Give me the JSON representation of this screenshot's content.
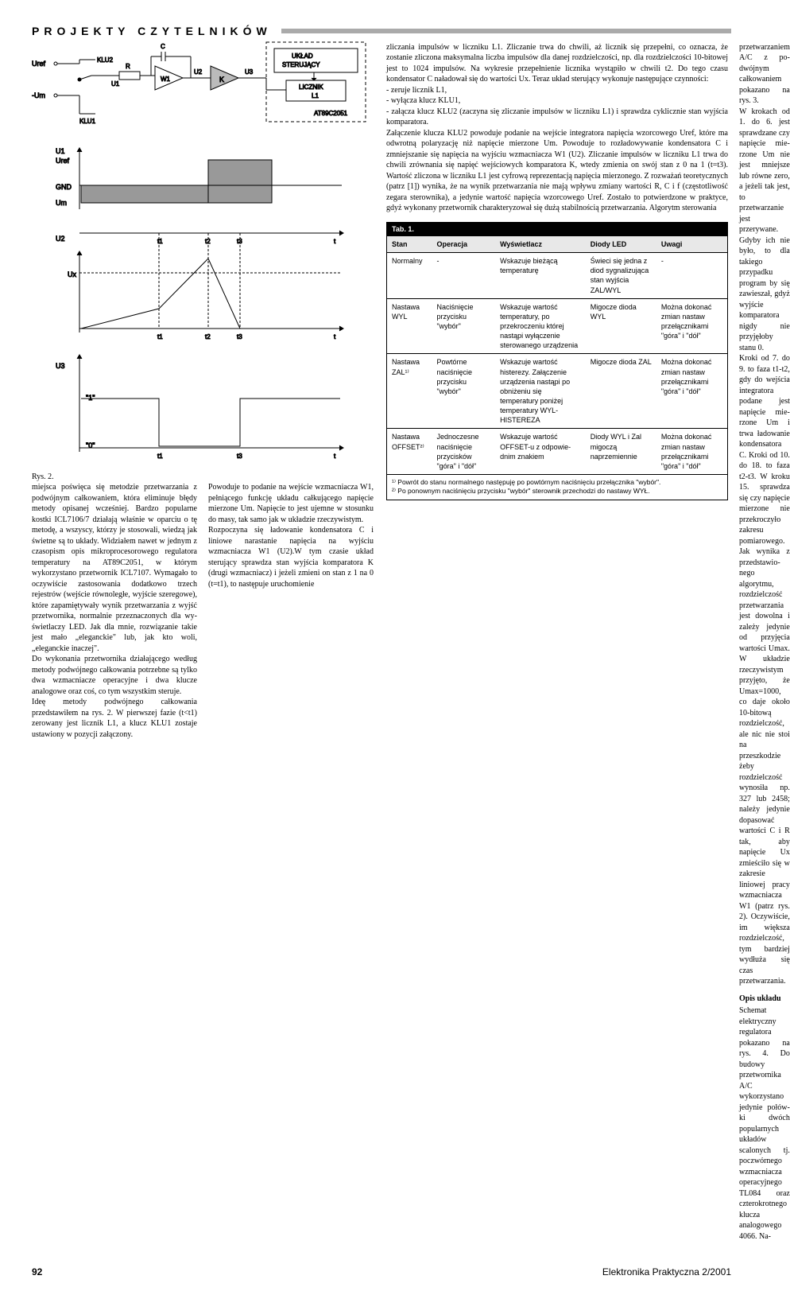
{
  "header": {
    "title": "PROJEKTY CZYTELNIKÓW"
  },
  "diagram": {
    "schematic": {
      "labels": {
        "uref": "Uref",
        "minus_um": "-Um",
        "klu1": "KLU1",
        "klu2": "KLU2",
        "u1": "U1",
        "u2": "U2",
        "u3": "U3",
        "r": "R",
        "c": "C",
        "w1": "W1",
        "k": "K",
        "uklad": "UKŁAD\nSTERUJĄCY",
        "licznik": "LICZNIK\nL1",
        "chip": "AT89C2051"
      },
      "colors": {
        "line": "#000000",
        "fill": "#ffffff",
        "hatch": "#888888"
      }
    },
    "timing": {
      "rows": [
        "U1\nUref",
        "GND",
        "Um",
        "U2",
        "Ux",
        "U3",
        "\"1\"",
        "\"0\""
      ],
      "ticks": [
        "t1",
        "t2",
        "t3",
        "t"
      ]
    },
    "caption": "Rys. 2."
  },
  "body": {
    "col_left_a": "miejsca poświęca się meto­dzie przetwarzania z podwój­nym całkowaniem, która eli­minuje błędy metody opisa­nej wcześniej. Bardzo popu­larne kostki ICL7106/7 działa­ją właśnie w oparciu o tę me­todę, a wszyscy, którzy je sto­sowali, wiedzą jak świetne są to układy. Widziałem nawet w jednym z czasopism opis mikroprocesorowego regulato­ra temperatury na AT89C2051, w którym wykorzystano prze­twornik ICL7107. Wymagało to oczywiście zastosowania dodatkowo trzech rejestrów (wejście równoległe, wyjście szeregowe), które zapamięty­wały wynik przetwarzania z wyjść przetwornika, normal­nie przeznaczonych dla wy­świetlaczy LED. Jak dla mnie, rozwiązanie takie jest mało „eleganckie\" lub, jak kto wo­li, „eleganckie inaczej\".\nDo wykonania przetworni­ka działającego według meto­dy podwójnego całkowania po­trzebne są tylko dwa wzmac­niacze operacyjne i dwa klu­cze analogowe oraz coś, co tym wszystkim steruje.\nIdeę metody podwójnego całkowania przedstawiłem na rys. 2. W pierwszej fazie (t<t1) zerowany jest licznik L1, a klucz KLU1 zostaje usta­wiony w pozycji załączony.",
    "col_left_b": "Powoduje to podanie na wej­ście wzmacniacza W1, pełnią­cego funkcję układu całkują­cego napięcie mierzone Um. Napięcie to jest ujemne w sto­sunku do masy, tak samo jak w układzie rzeczywistym.\nRozpoczyna się ładowanie kondensatora C i liniowe na­rastanie napięcia na wyjściu wzmacniacza W1 (U2).W tym czasie układ sterujący spraw­dza stan wyjścia komparatora K (drugi wzmacniacz) i jeżeli zmieni on stan z 1 na 0 (t=t1), to następuje uruchomienie",
    "col_right_a": "zliczania impulsów w liczni­ku L1. Zliczanie trwa do chwili, aż licznik się przepeł­ni, co oznacza, że zostanie zliczona maksymalna liczba impulsów dla danej rozdziel­czości, np. dla rozdzielczości 10-bitowej jest to 1024 impul­sów. Na wykresie przepełnie­nie licznika wystąpiło w chwili t2. Do tego czasu kondensator C naładował się do wartości Ux. Teraz układ sterujący wykonuje następu­jące czynności:\n- zeruje licznik L1,\n- wyłącza klucz KLU1,\n- załącza klucz KLU2 (zaczy­na się zliczanie impulsów w liczniku L1) i sprawdza cyklicznie stan wyjścia komparatora.\nZałączenie klucza KLU2 powoduje podanie na wejście integratora napięcia wzorco­wego Uref, które ma odwrot­ną polaryzację niż napięcie mierzone Um. Powoduje to rozładowywanie kondensatora C i zmniejszanie się napięcia na wyjściu wzmacniacza W1 (U2). Zliczanie impulsów w liczniku L1 trwa do chwili zrównania się napięć wejścio­wych komparatora K, wtedy zmienia on swój stan z 0 na 1 (t=t3). Wartość zliczona w liczniku L1 jest cyfrową re­prezentacją napięcia mierzo­nego. Z rozważań teoretycz­nych (patrz [1]) wynika, że na wynik przetwarzania nie mają wpływu zmiany wartości R, C i f (częstotliwość zegara ste­rownika), a jedynie wartość napięcia wzorcowego Uref. Zostało to potwierdzone w praktyce, gdyż wykonany przetwornik charakteryzował się dużą stabilnością przetwa­rzania. Algorytm sterowania",
    "col_right_b": "przetwarzaniem A/C z po­dwójnym całkowaniem poka­zano na rys. 3.\nW krokach od 1. do 6. jest sprawdzane czy napięcie mie­rzone Um nie jest mniejsze lub równe zero, a jeżeli tak jest, to przetwarzanie jest przerywane. Gdyby ich nie było, to dla takiego przypad­ku program by się zawieszał, gdyż wyjście komparatora ni­gdy nie przyjęłoby stanu 0.\nKroki od 7. do 9. to faza t1-t2, gdy do wejścia integra­tora podane jest napięcie mie­rzone Um i trwa ładowanie kondensatora C. Kroki od 10. do 18. to faza t2-t3. W kroku 15. sprawdza się czy napięcie mierzone nie przekroczyło za­kresu pomiarowego.\nJak wynika z przedstawio­nego algorytmu, rozdzielczość przetwarzania jest dowolna i zależy jedynie od przyjęcia wartości Umax. W układzie rzeczywistym przyjęto, że Umax=1000, co daje około 10-bitową rozdzielczość, ale nic nie stoi na przeszkodzie żeby rozdzielczość wynosiła np. 327 lub 2458; należy jedynie dopa­sować wartości C i R tak, aby napięcie Ux zmieściło się w za­kresie liniowej pracy wzmac­niacza W1 (patrz rys. 2). Oczy­wiście, im większa rozdziel­czość, tym bardziej wydłuża się czas przetwarzania.",
    "section_head": "Opis układu",
    "col_right_b2": "Schemat elektryczny regu­latora pokazano na rys. 4. Do budowy przetwornika A/C wykorzystano jedynie połów­ki dwóch popularnych ukła­dów scalonych tj. poczwórne­go wzmacniacza operacyjnego TL084 oraz czterokrotnego klucza analogowego 4066. Na-"
  },
  "table": {
    "title": "Tab. 1.",
    "columns": [
      "Stan",
      "Operacja",
      "Wyświetlacz",
      "Diody LED",
      "Uwagi"
    ],
    "rows": [
      [
        "Normalny",
        "-",
        "Wskazuje bieżącą temperaturę",
        "Świeci się jedna z diod sygnalizująca stan wyjścia ZAL/WYL",
        "-"
      ],
      [
        "Nastawa WYL",
        "Naciśnięcie przycisku \"wybór\"",
        "Wskazuje wartość temperatury, po przekroczeniu której nastąpi wyłączenie sterowanego urządzenia",
        "Migocze dioda WYL",
        "Można dokonać zmian nastaw przełącznikami \"góra\" i \"dół\""
      ],
      [
        "Nastawa ZAL¹⁾",
        "Powtórne naciśnięcie przycisku \"wybór\"",
        "Wskazuje wartość histerezy. Załączenie urządzenia nastąpi po obniżeniu się temperatury poniżej temperatury WYL-HISTEREZA",
        "Migocze dioda ZAL",
        "Można dokonać zmian nastaw przełącznikami \"góra\" i \"dół\""
      ],
      [
        "Nastawa OFFSET²⁾",
        "Jednoczesne naciśnięcie przycisków \"góra\" i \"dół\"",
        "Wskazuje wartość OFFSET-u z odpowie­dnim znakiem",
        "Diody WYL i Zal migoczą naprzemiennie",
        "Można dokonać zmian nastaw przełącznikami \"góra\" i \"dół\""
      ]
    ],
    "footnotes": [
      "¹⁾ Powrót do stanu normalnego następuję po powtórnym naciśnięciu przełącznika \"wybór\".",
      "²⁾ Po ponownym naciśnięciu przycisku \"wybór\" sterownik przechodzi do nastawy WYŁ."
    ]
  },
  "footer": {
    "page": "92",
    "pub": "Elektronika Praktyczna 2/2001"
  }
}
